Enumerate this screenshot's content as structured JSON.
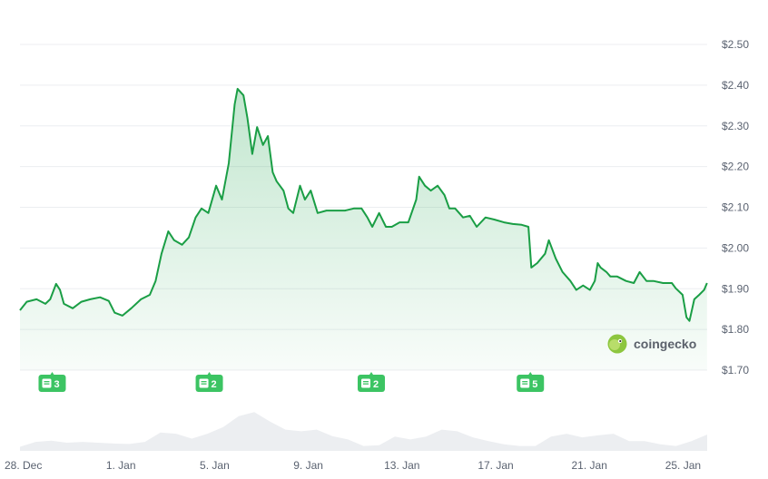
{
  "chart_data": {
    "type": "line",
    "title": "",
    "xlabel": "",
    "ylabel": "",
    "ylim": [
      1.7,
      2.5
    ],
    "y_ticks": [
      "$2.50",
      "$2.40",
      "$2.30",
      "$2.20",
      "$2.10",
      "$2.00",
      "$1.90",
      "$1.80",
      "$1.70"
    ],
    "y_tick_values": [
      2.5,
      2.4,
      2.3,
      2.2,
      2.1,
      2.0,
      1.9,
      1.8,
      1.7
    ],
    "x_ticks": [
      {
        "label": "28. Dec",
        "date": "Dec 28 00:00"
      },
      {
        "label": "1. Jan",
        "date": "Jan 1 00:00"
      },
      {
        "label": "5. Jan",
        "date": "Jan 5 00:00"
      },
      {
        "label": "9. Jan",
        "date": "Jan 9 00:00"
      },
      {
        "label": "13. Jan",
        "date": "Jan 13 00:00"
      },
      {
        "label": "17. Jan",
        "date": "Jan 17 00:00"
      },
      {
        "label": "21. Jan",
        "date": "Jan 21 00:00"
      },
      {
        "label": "25. Jan",
        "date": "Jan 25 00:00"
      }
    ],
    "grid": true,
    "line_color": "#1a9e45",
    "fill_color": "#22a650",
    "series": [
      {
        "points": [
          [
            "Dec 28 00:00",
            1.847
          ],
          [
            "Dec 28 07:00",
            1.868
          ],
          [
            "Dec 28 17:00",
            1.874
          ],
          [
            "Dec 29 02:00",
            1.863
          ],
          [
            "Dec 29 07:00",
            1.874
          ],
          [
            "Dec 29 13:00",
            1.912
          ],
          [
            "Dec 29 17:00",
            1.897
          ],
          [
            "Dec 29 21:00",
            1.863
          ],
          [
            "Dec 30 06:00",
            1.852
          ],
          [
            "Dec 30 15:00",
            1.868
          ],
          [
            "Dec 31 00:00",
            1.874
          ],
          [
            "Dec 31 10:00",
            1.879
          ],
          [
            "Dec 31 19:00",
            1.87
          ],
          [
            "Jan 1 01:00",
            1.841
          ],
          [
            "Jan 1 09:00",
            1.834
          ],
          [
            "Jan 1 18:00",
            1.852
          ],
          [
            "Jan 2 04:00",
            1.874
          ],
          [
            "Jan 2 13:00",
            1.885
          ],
          [
            "Jan 2 19:00",
            1.919
          ],
          [
            "Jan 3 01:00",
            1.986
          ],
          [
            "Jan 3 08:00",
            2.041
          ],
          [
            "Jan 3 14:00",
            2.019
          ],
          [
            "Jan 3 22:00",
            2.008
          ],
          [
            "Jan 4 05:00",
            2.026
          ],
          [
            "Jan 4 12:00",
            2.075
          ],
          [
            "Jan 4 18:00",
            2.097
          ],
          [
            "Jan 5 01:00",
            2.086
          ],
          [
            "Jan 5 09:00",
            2.153
          ],
          [
            "Jan 5 15:00",
            2.119
          ],
          [
            "Jan 5 22:00",
            2.208
          ],
          [
            "Jan 6 04:00",
            2.353
          ],
          [
            "Jan 6 07:00",
            2.391
          ],
          [
            "Jan 6 13:00",
            2.375
          ],
          [
            "Jan 6 17:00",
            2.32
          ],
          [
            "Jan 6 22:00",
            2.231
          ],
          [
            "Jan 7 03:00",
            2.297
          ],
          [
            "Jan 7 09:00",
            2.253
          ],
          [
            "Jan 7 14:00",
            2.275
          ],
          [
            "Jan 7 19:00",
            2.186
          ],
          [
            "Jan 7 23:00",
            2.164
          ],
          [
            "Jan 8 06:00",
            2.141
          ],
          [
            "Jan 8 11:00",
            2.097
          ],
          [
            "Jan 8 16:00",
            2.086
          ],
          [
            "Jan 8 23:00",
            2.153
          ],
          [
            "Jan 9 04:00",
            2.119
          ],
          [
            "Jan 9 10:00",
            2.141
          ],
          [
            "Jan 9 17:00",
            2.086
          ],
          [
            "Jan 10 02:00",
            2.092
          ],
          [
            "Jan 10 12:00",
            2.092
          ],
          [
            "Jan 10 21:00",
            2.092
          ],
          [
            "Jan 11 06:00",
            2.097
          ],
          [
            "Jan 11 14:00",
            2.097
          ],
          [
            "Jan 11 20:00",
            2.075
          ],
          [
            "Jan 12 01:00",
            2.052
          ],
          [
            "Jan 12 08:00",
            2.086
          ],
          [
            "Jan 12 15:00",
            2.052
          ],
          [
            "Jan 12 21:00",
            2.052
          ],
          [
            "Jan 13 05:00",
            2.063
          ],
          [
            "Jan 13 14:00",
            2.063
          ],
          [
            "Jan 13 22:00",
            2.119
          ],
          [
            "Jan 14 01:00",
            2.175
          ],
          [
            "Jan 14 07:00",
            2.153
          ],
          [
            "Jan 14 13:00",
            2.141
          ],
          [
            "Jan 14 20:00",
            2.153
          ],
          [
            "Jan 15 03:00",
            2.13
          ],
          [
            "Jan 15 08:00",
            2.097
          ],
          [
            "Jan 15 14:00",
            2.097
          ],
          [
            "Jan 15 22:00",
            2.075
          ],
          [
            "Jan 16 05:00",
            2.079
          ],
          [
            "Jan 16 12:00",
            2.052
          ],
          [
            "Jan 16 21:00",
            2.075
          ],
          [
            "Jan 17 06:00",
            2.07
          ],
          [
            "Jan 17 16:00",
            2.063
          ],
          [
            "Jan 18 01:00",
            2.059
          ],
          [
            "Jan 18 10:00",
            2.057
          ],
          [
            "Jan 18 17:00",
            2.052
          ],
          [
            "Jan 18 20:00",
            1.952
          ],
          [
            "Jan 19 02:00",
            1.963
          ],
          [
            "Jan 19 10:00",
            1.986
          ],
          [
            "Jan 19 14:00",
            2.019
          ],
          [
            "Jan 19 21:00",
            1.974
          ],
          [
            "Jan 20 04:00",
            1.941
          ],
          [
            "Jan 20 12:00",
            1.919
          ],
          [
            "Jan 20 18:00",
            1.897
          ],
          [
            "Jan 21 01:00",
            1.908
          ],
          [
            "Jan 21 08:00",
            1.897
          ],
          [
            "Jan 21 13:00",
            1.919
          ],
          [
            "Jan 21 16:00",
            1.963
          ],
          [
            "Jan 21 19:00",
            1.952
          ],
          [
            "Jan 22 01:00",
            1.941
          ],
          [
            "Jan 22 05:00",
            1.93
          ],
          [
            "Jan 22 12:00",
            1.93
          ],
          [
            "Jan 22 21:00",
            1.919
          ],
          [
            "Jan 23 05:00",
            1.914
          ],
          [
            "Jan 23 11:00",
            1.941
          ],
          [
            "Jan 23 18:00",
            1.919
          ],
          [
            "Jan 24 01:00",
            1.919
          ],
          [
            "Jan 24 11:00",
            1.914
          ],
          [
            "Jan 24 20:00",
            1.914
          ],
          [
            "Jan 25 00:00",
            1.901
          ],
          [
            "Jan 25 07:00",
            1.885
          ],
          [
            "Jan 25 11:00",
            1.83
          ],
          [
            "Jan 25 14:00",
            1.821
          ],
          [
            "Jan 25 19:00",
            1.874
          ],
          [
            "Jan 26 00:00",
            1.885
          ],
          [
            "Jan 26 05:00",
            1.897
          ],
          [
            "Jan 26 08:00",
            1.914
          ]
        ]
      }
    ],
    "volume_relative": [
      10,
      22,
      25,
      20,
      22,
      20,
      18,
      17,
      22,
      45,
      42,
      30,
      42,
      58,
      85,
      95,
      72,
      52,
      48,
      52,
      36,
      28,
      12,
      14,
      35,
      28,
      35,
      52,
      48,
      33,
      24,
      16,
      12,
      12,
      35,
      42,
      33,
      38,
      42,
      24,
      24,
      16,
      12,
      24,
      40
    ],
    "event_badges": [
      {
        "date": "Dec 29 09:00",
        "count": "3"
      },
      {
        "date": "Jan 5 02:00",
        "count": "2"
      },
      {
        "date": "Jan 12 00:00",
        "count": "2"
      },
      {
        "date": "Jan 18 19:00",
        "count": "5"
      }
    ],
    "badge_color": "#3cc463",
    "badge_icon": "news-icon"
  },
  "watermark": {
    "text": "coingecko",
    "icon": "gecko-logo-icon"
  }
}
